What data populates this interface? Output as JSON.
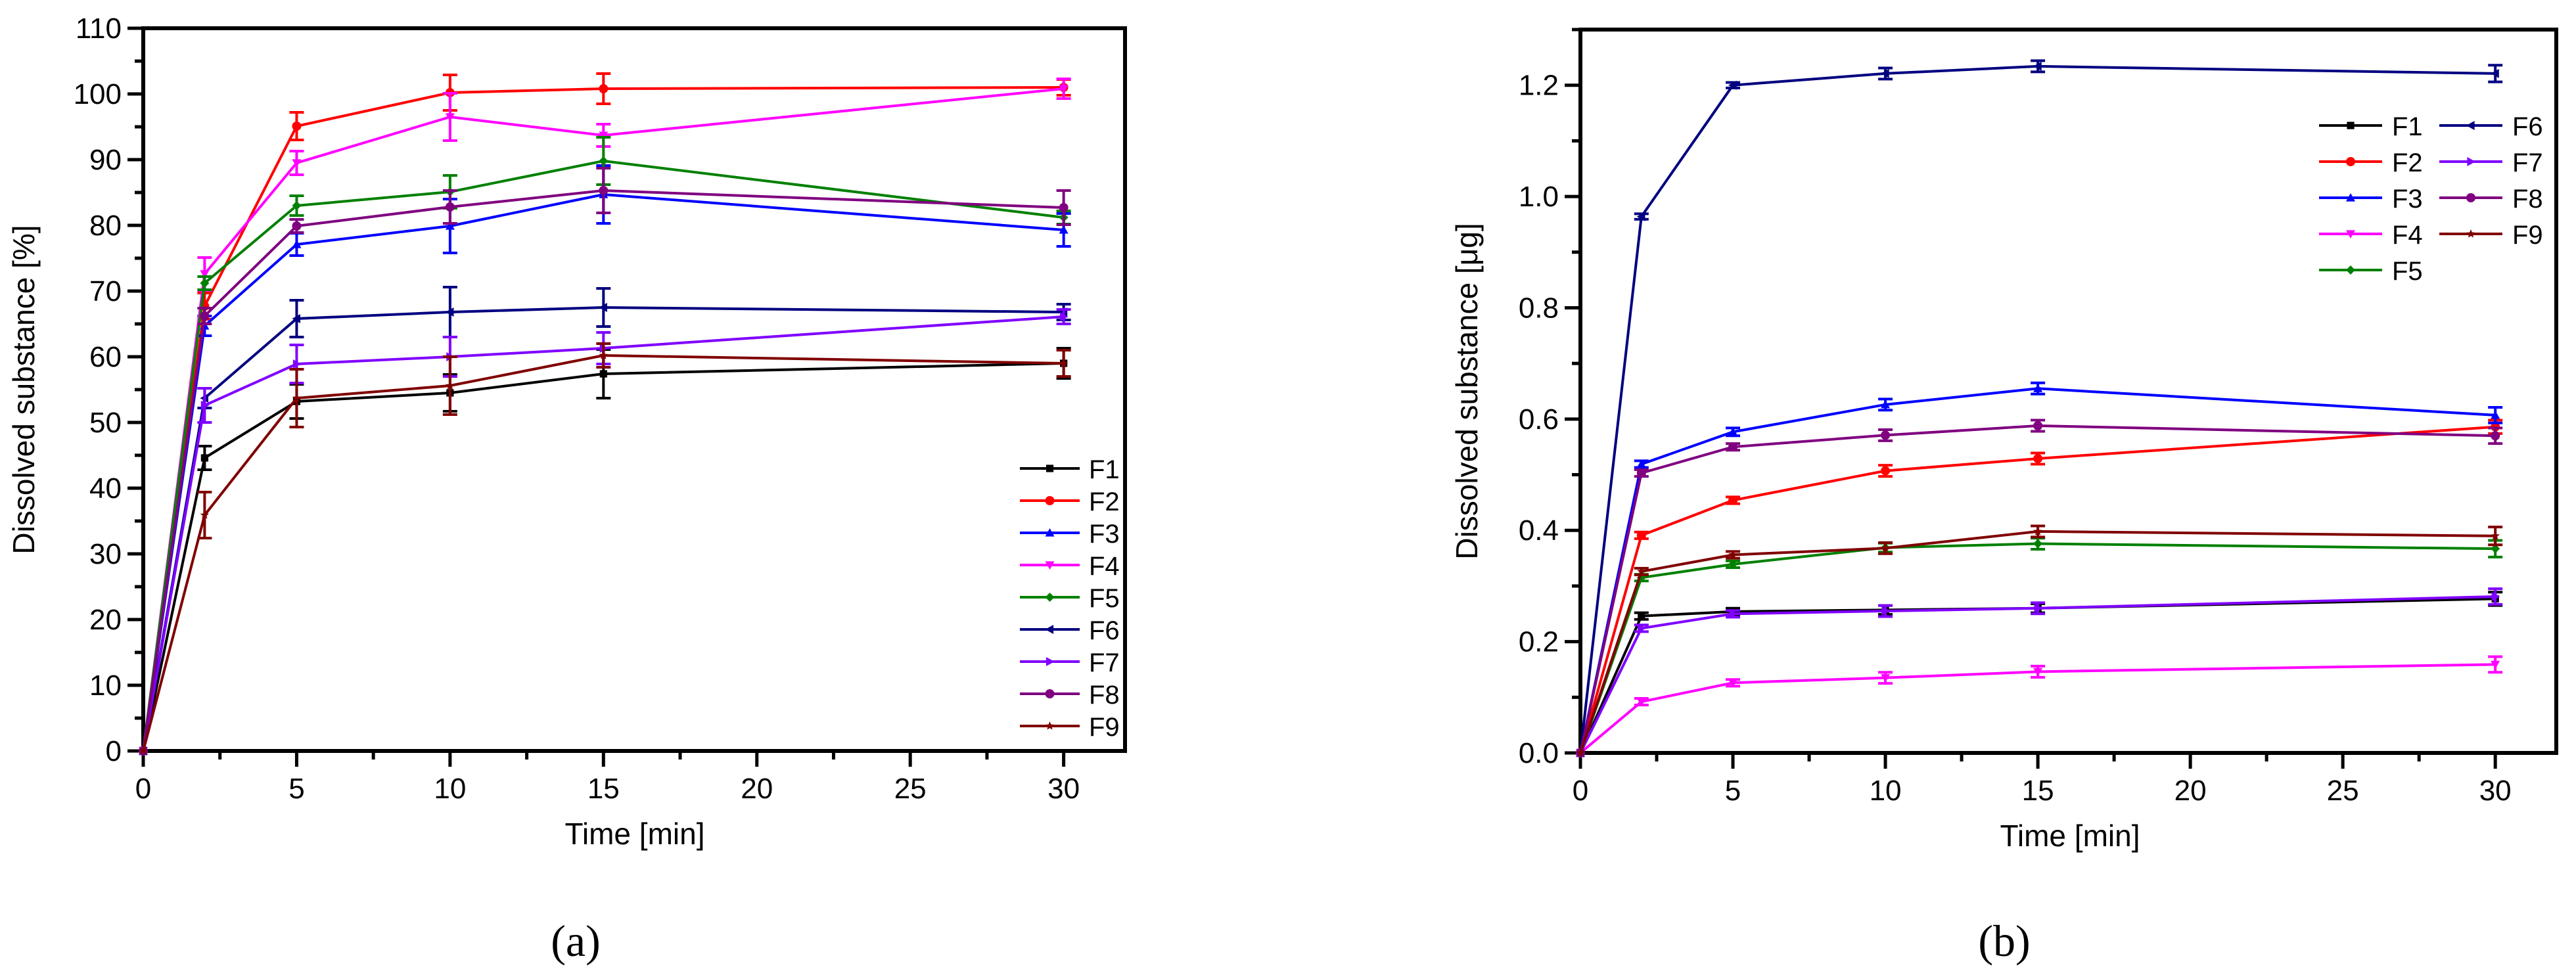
{
  "chart_data": [
    {
      "type": "line",
      "panel_label": "(a)",
      "xlabel": "Time [min]",
      "ylabel": "Dissolved substance [%]",
      "xlim": [
        0,
        32
      ],
      "ylim": [
        0,
        110
      ],
      "xticks": [
        0,
        5,
        10,
        15,
        20,
        25,
        30
      ],
      "yticks": [
        0,
        10,
        20,
        30,
        40,
        50,
        60,
        70,
        80,
        90,
        100,
        110
      ],
      "grid": false,
      "legend_position": "bottom-right",
      "legend_columns": 1,
      "x": [
        0,
        2,
        5,
        10,
        15,
        30
      ],
      "series": [
        {
          "name": "F1",
          "color": "#000000",
          "marker": "square",
          "values": [
            0,
            44.6,
            53.2,
            54.5,
            57.4,
            59.0
          ],
          "errors": [
            0,
            1.8,
            2.6,
            2.8,
            3.7,
            2.3
          ]
        },
        {
          "name": "F2",
          "color": "#ff0000",
          "marker": "circle",
          "values": [
            0,
            67.7,
            95.1,
            100.2,
            100.8,
            101.0
          ],
          "errors": [
            0,
            2.0,
            2.1,
            2.7,
            2.3,
            1.2
          ]
        },
        {
          "name": "F3",
          "color": "#0000ff",
          "marker": "triangle-up",
          "values": [
            0,
            64.7,
            77.1,
            79.9,
            84.7,
            79.3
          ],
          "errors": [
            0,
            1.5,
            1.7,
            4.1,
            4.4,
            2.5
          ]
        },
        {
          "name": "F4",
          "color": "#ff00ff",
          "marker": "triangle-down",
          "values": [
            0,
            72.6,
            89.5,
            96.5,
            93.7,
            100.8
          ],
          "errors": [
            0,
            2.5,
            1.8,
            3.6,
            1.7,
            1.5
          ]
        },
        {
          "name": "F5",
          "color": "#008000",
          "marker": "diamond",
          "values": [
            0,
            71.2,
            83.0,
            85.1,
            89.8,
            81.2
          ],
          "errors": [
            0,
            1.0,
            1.5,
            2.5,
            3.6,
            1.0
          ]
        },
        {
          "name": "F6",
          "color": "#000080",
          "marker": "triangle-left",
          "values": [
            0,
            53.7,
            65.8,
            66.8,
            67.5,
            66.8
          ],
          "errors": [
            0,
            1.5,
            2.8,
            3.8,
            2.9,
            1.2
          ]
        },
        {
          "name": "F7",
          "color": "#8000ff",
          "marker": "triangle-right",
          "values": [
            0,
            52.6,
            58.9,
            60.0,
            61.3,
            66.1
          ],
          "errors": [
            0,
            2.6,
            2.9,
            3.0,
            2.4,
            1.1
          ]
        },
        {
          "name": "F8",
          "color": "#800080",
          "marker": "hexagon",
          "values": [
            0,
            66.2,
            79.9,
            82.8,
            85.3,
            82.7
          ],
          "errors": [
            0,
            1.2,
            1.0,
            2.5,
            3.4,
            2.6
          ]
        },
        {
          "name": "F9",
          "color": "#800000",
          "marker": "star",
          "values": [
            0,
            35.9,
            53.7,
            55.6,
            60.2,
            59.0
          ],
          "errors": [
            0,
            3.5,
            4.4,
            4.4,
            1.8,
            2.0
          ]
        }
      ]
    },
    {
      "type": "line",
      "panel_label": "(b)",
      "xlabel": "Time [min]",
      "ylabel": "Dissolved substance [μg]",
      "xlim": [
        0,
        32
      ],
      "ylim": [
        0,
        1.3
      ],
      "xticks": [
        0,
        5,
        10,
        15,
        20,
        25,
        30
      ],
      "yticks": [
        "0.0",
        "0.2",
        "0.4",
        "0.6",
        "0.8",
        "1.0",
        "1.2"
      ],
      "grid": false,
      "legend_position": "top-right",
      "legend_columns": 2,
      "x": [
        0,
        2,
        5,
        10,
        15,
        30
      ],
      "series": [
        {
          "name": "F1",
          "color": "#000000",
          "marker": "square",
          "values": [
            0,
            0.246,
            0.254,
            0.257,
            0.26,
            0.277
          ],
          "errors": [
            0,
            0.006,
            0.006,
            0.008,
            0.008,
            0.012
          ]
        },
        {
          "name": "F2",
          "color": "#ff0000",
          "marker": "circle",
          "values": [
            0,
            0.391,
            0.454,
            0.507,
            0.529,
            0.586
          ],
          "errors": [
            0,
            0.006,
            0.006,
            0.01,
            0.01,
            0.012
          ]
        },
        {
          "name": "F3",
          "color": "#0000ff",
          "marker": "triangle-up",
          "values": [
            0,
            0.519,
            0.577,
            0.626,
            0.655,
            0.607
          ],
          "errors": [
            0,
            0.006,
            0.007,
            0.01,
            0.01,
            0.014
          ]
        },
        {
          "name": "F4",
          "color": "#ff00ff",
          "marker": "triangle-down",
          "values": [
            0,
            0.092,
            0.126,
            0.135,
            0.146,
            0.159
          ],
          "errors": [
            0,
            0.006,
            0.006,
            0.01,
            0.01,
            0.014
          ]
        },
        {
          "name": "F5",
          "color": "#008000",
          "marker": "diamond",
          "values": [
            0,
            0.315,
            0.339,
            0.369,
            0.376,
            0.367
          ],
          "errors": [
            0,
            0.006,
            0.006,
            0.008,
            0.01,
            0.015
          ]
        },
        {
          "name": "F6",
          "color": "#000080",
          "marker": "triangle-left",
          "values": [
            0,
            0.964,
            1.2,
            1.221,
            1.234,
            1.221
          ],
          "errors": [
            0,
            0.005,
            0.005,
            0.01,
            0.01,
            0.015
          ]
        },
        {
          "name": "F7",
          "color": "#8000ff",
          "marker": "triangle-right",
          "values": [
            0,
            0.224,
            0.25,
            0.255,
            0.26,
            0.281
          ],
          "errors": [
            0,
            0.006,
            0.006,
            0.01,
            0.01,
            0.014
          ]
        },
        {
          "name": "F8",
          "color": "#800080",
          "marker": "hexagon",
          "values": [
            0,
            0.503,
            0.55,
            0.571,
            0.588,
            0.57
          ],
          "errors": [
            0,
            0.006,
            0.006,
            0.01,
            0.01,
            0.014
          ]
        },
        {
          "name": "F9",
          "color": "#800000",
          "marker": "star",
          "values": [
            0,
            0.326,
            0.356,
            0.368,
            0.398,
            0.39
          ],
          "errors": [
            0,
            0.006,
            0.006,
            0.01,
            0.01,
            0.016
          ]
        }
      ]
    }
  ]
}
